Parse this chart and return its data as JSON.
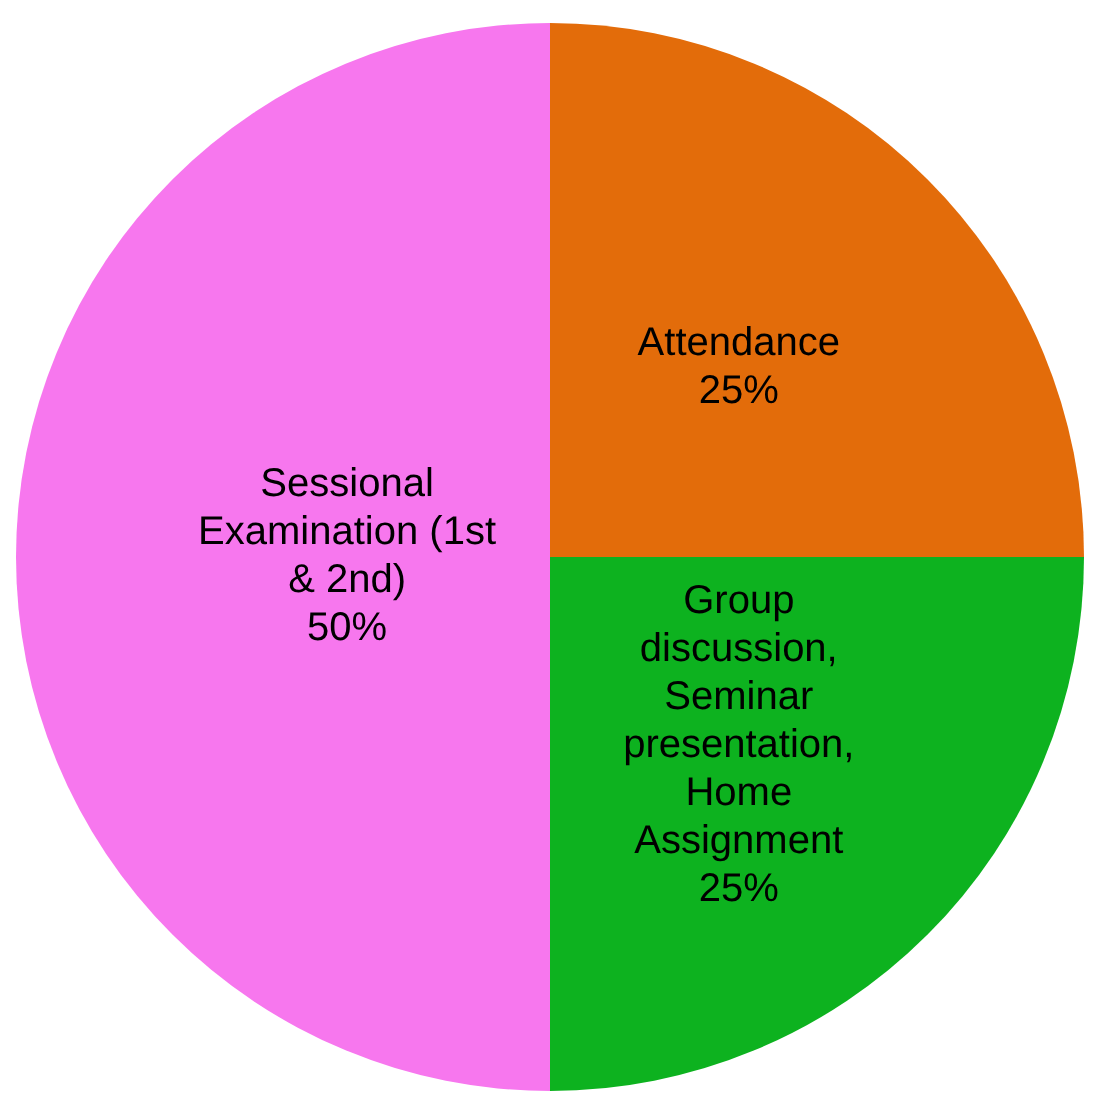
{
  "chart_data": {
    "type": "pie",
    "categories": [
      "Attendance",
      "Group discussion, Seminar presentation, Home Assignment",
      "Sessional Examination (1st & 2nd)"
    ],
    "values": [
      25,
      25,
      50
    ],
    "colors": [
      "#e36c0a",
      "#0db21f",
      "#f777ee"
    ],
    "value_labels": [
      "25%",
      "25%",
      "50%"
    ],
    "legend": false
  }
}
